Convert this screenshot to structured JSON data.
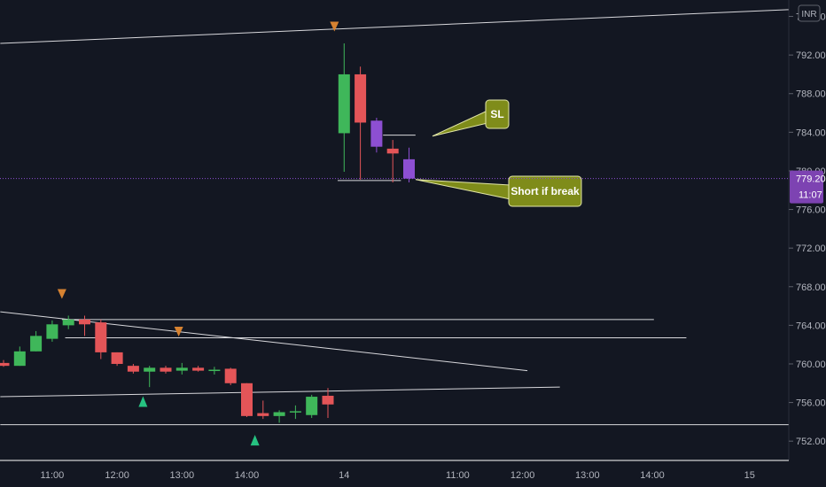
{
  "chart_data": {
    "type": "candlestick",
    "currency": "INR",
    "y_ticks": [
      752,
      756,
      760,
      764,
      768,
      772,
      776,
      780,
      784,
      788,
      792,
      796
    ],
    "y_tick_labels": [
      "752.00",
      "756.00",
      "760.00",
      "764.00",
      "768.00",
      "772.00",
      "776.00",
      "780.00",
      "784.00",
      "788.00",
      "792.00",
      "796.00"
    ],
    "ylim": [
      750.0,
      797.7
    ],
    "x_ticks": [
      {
        "label": "11:00",
        "i": 3
      },
      {
        "label": "12:00",
        "i": 7
      },
      {
        "label": "13:00",
        "i": 11
      },
      {
        "label": "14:00",
        "i": 15
      },
      {
        "label": "14",
        "i": 21
      },
      {
        "label": "11:00",
        "i": 28
      },
      {
        "label": "12:00",
        "i": 32
      },
      {
        "label": "13:00",
        "i": 36
      },
      {
        "label": "14:00",
        "i": 40
      },
      {
        "label": "15",
        "i": 46
      }
    ],
    "candles": [
      {
        "i": 0,
        "o": 760.1,
        "h": 760.4,
        "l": 759.7,
        "c": 759.8
      },
      {
        "i": 1,
        "o": 759.8,
        "h": 761.8,
        "l": 759.8,
        "c": 761.3
      },
      {
        "i": 2,
        "o": 761.3,
        "h": 763.4,
        "l": 761.3,
        "c": 762.9
      },
      {
        "i": 3,
        "o": 762.6,
        "h": 764.5,
        "l": 762.3,
        "c": 764.1
      },
      {
        "i": 4,
        "o": 764.0,
        "h": 765.0,
        "l": 763.6,
        "c": 764.6
      },
      {
        "i": 5,
        "o": 764.6,
        "h": 765.0,
        "l": 762.9,
        "c": 764.1
      },
      {
        "i": 6,
        "o": 764.3,
        "h": 764.6,
        "l": 760.5,
        "c": 761.2
      },
      {
        "i": 7,
        "o": 761.2,
        "h": 761.2,
        "l": 759.8,
        "c": 760.0
      },
      {
        "i": 8,
        "o": 759.8,
        "h": 760.0,
        "l": 759.0,
        "c": 759.2
      },
      {
        "i": 9,
        "o": 759.2,
        "h": 759.8,
        "l": 757.6,
        "c": 759.6
      },
      {
        "i": 10,
        "o": 759.6,
        "h": 759.8,
        "l": 759.0,
        "c": 759.2
      },
      {
        "i": 11,
        "o": 759.3,
        "h": 760.1,
        "l": 758.9,
        "c": 759.6
      },
      {
        "i": 12,
        "o": 759.6,
        "h": 759.8,
        "l": 759.2,
        "c": 759.3
      },
      {
        "i": 13,
        "o": 759.4,
        "h": 759.7,
        "l": 758.9,
        "c": 759.4
      },
      {
        "i": 14,
        "o": 759.5,
        "h": 759.6,
        "l": 757.8,
        "c": 758.0
      },
      {
        "i": 15,
        "o": 758.0,
        "h": 758.0,
        "l": 754.5,
        "c": 754.6
      },
      {
        "i": 16,
        "o": 754.9,
        "h": 756.2,
        "l": 754.3,
        "c": 754.6
      },
      {
        "i": 17,
        "o": 754.6,
        "h": 755.2,
        "l": 753.9,
        "c": 755.0
      },
      {
        "i": 18,
        "o": 755.0,
        "h": 755.7,
        "l": 754.3,
        "c": 755.1
      },
      {
        "i": 19,
        "o": 754.7,
        "h": 756.8,
        "l": 754.4,
        "c": 756.6
      },
      {
        "i": 20,
        "o": 756.7,
        "h": 757.5,
        "l": 754.4,
        "c": 755.8
      },
      {
        "i": 21,
        "o": 783.9,
        "h": 793.2,
        "l": 779.9,
        "c": 790.0
      },
      {
        "i": 22,
        "o": 790.0,
        "h": 790.8,
        "l": 779.1,
        "c": 785.0
      },
      {
        "i": 23,
        "o": 785.2,
        "h": 785.5,
        "l": 781.9,
        "c": 782.5
      },
      {
        "i": 24,
        "o": 782.3,
        "h": 783.2,
        "l": 778.8,
        "c": 781.8
      },
      {
        "i": 25,
        "o": 781.2,
        "h": 782.4,
        "l": 778.8,
        "c": 779.2
      }
    ],
    "last_price": "779.20",
    "countdown": "11:07",
    "annotations": [
      {
        "label": "SL"
      },
      {
        "label": "Short if break"
      }
    ],
    "colors": {
      "up": "#3fb75a",
      "down": "#e45558",
      "highlight": "#8d4fd2",
      "background": "#131722",
      "axis_text": "#b2b5be",
      "callout_fill": "#7f8c1a",
      "callout_border": "#e3e7a8",
      "arrow_up": "#26c281",
      "arrow_down": "#d68231",
      "price_tag": "#7d43b2"
    }
  },
  "price_axis": {
    "last_price": "779.20",
    "countdown": "11:07",
    "currency_badge": "INR"
  }
}
